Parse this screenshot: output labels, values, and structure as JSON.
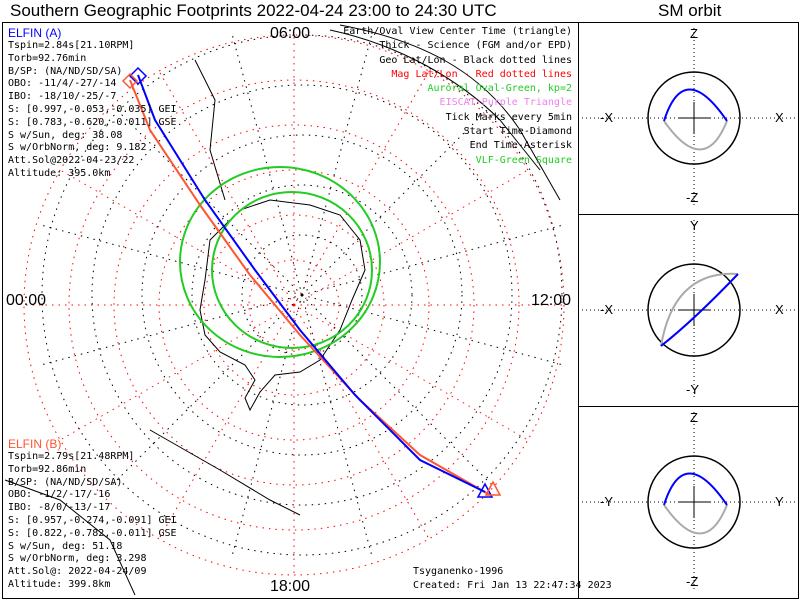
{
  "title": "Southern Geographic Footprints 2022-04-24 23:00 to 24:30 UTC",
  "orbit_title": "SM orbit",
  "map": {
    "mlt_labels": {
      "top": "06:00",
      "bottom": "18:00",
      "left": "00:00",
      "right": "12:00"
    }
  },
  "elfin_a": {
    "name": "ELFIN (A)",
    "color": "#0000ff",
    "lines": [
      "Tspin=2.84s[21.10RPM]",
      "Torb=92.76min",
      "B/SP: (NA/ND/SD/SA)",
      "OBO: -11/4/-27/-14",
      "IBO: -18/10/-25/-7",
      "S: [0.997,-0.053,-0.035] GEI",
      "S: [0.783,-0.620,-0.011] GSE",
      "S w/Sun, deg: 38.08",
      "S w/OrbNorm, deg: 9.182",
      "Att.Sol@2022-04-23/22",
      "Altitude: 395.0km"
    ]
  },
  "elfin_b": {
    "name": "ELFIN (B)",
    "color": "#ff5533",
    "lines": [
      "Tspin=2.79s[21.48RPM]",
      "Torb=92.86min",
      "B/SP: (NA/ND/SD/SA)",
      "OBO: -1/2/-17/-16",
      "IBO: -8/0/-13/-17",
      "S: [0.957,-0.274,-0.091] GEI",
      "S: [0.822,-0.782,-0.011] GSE",
      "S w/Sun, deg: 51.18",
      "S w/OrbNorm, deg: 3.298",
      "Att.Sol@: 2022-04-24/09",
      "Altitude: 399.8km"
    ]
  },
  "legend": [
    {
      "text": "Earth/Oval View Center Time (triangle)",
      "color": "#000000"
    },
    {
      "text": "Thick - Science (FGM and/or EPD)",
      "color": "#000000"
    },
    {
      "text": "Geo Lat/Lon - Black dotted lines",
      "color": "#000000"
    },
    {
      "text": "Mag Lat/Lon - Red dotted lines",
      "color": "#ff0000"
    },
    {
      "text": "Auroral Oval-Green, kp=2",
      "color": "#22cc22"
    },
    {
      "text": "EISCAT-Purple Triangle",
      "color": "#ee82ee"
    },
    {
      "text": "Tick Marks every 5min",
      "color": "#000000"
    },
    {
      "text": "Start Time-Diamond",
      "color": "#000000"
    },
    {
      "text": "End Time-Asterisk",
      "color": "#000000"
    },
    {
      "text": "VLF-Green Square",
      "color": "#22cc22"
    }
  ],
  "footer": {
    "model": "Tsyganenko-1996",
    "created": "Created: Fri Jan 13 22:47:34 2023"
  },
  "orbit_panels": [
    {
      "top": "Z",
      "bottom": "-Z",
      "left": "-X",
      "right": "X"
    },
    {
      "top": "Y",
      "bottom": "-Y",
      "left": "-X",
      "right": "X"
    },
    {
      "top": "Z",
      "bottom": "-Z",
      "left": "-Y",
      "right": "Y"
    }
  ]
}
